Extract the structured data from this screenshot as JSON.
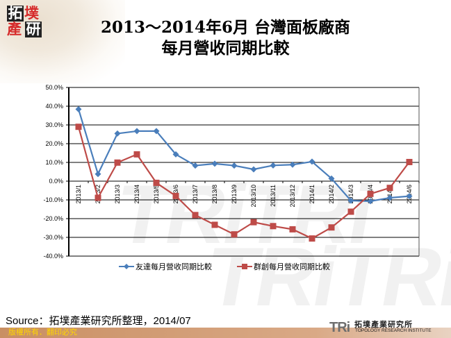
{
  "header": {
    "logo_chars": [
      "拓",
      "墣",
      "產",
      "研"
    ],
    "title_line1": "2013～2014年6月 台灣面板廠商",
    "title_line2": "每月營收同期比較"
  },
  "colors": {
    "series1": "#4a7ebb",
    "series2": "#be4b48",
    "footer_bar": "#c98f63",
    "footer_text": "#ffd700",
    "logo_red": "#d62b2b"
  },
  "chart_data": {
    "type": "line",
    "title": "2013～2014年6月 台灣面板廠商 每月營收同期比較",
    "xlabel": "",
    "ylabel": "",
    "ylim": [
      -40,
      50
    ],
    "yticks": [
      "50.0%",
      "40.0%",
      "30.0%",
      "20.0%",
      "10.0%",
      "0.0%",
      "-10.0%",
      "-20.0%",
      "-30.0%",
      "-40.0%"
    ],
    "grid": true,
    "legend_position": "bottom",
    "categories": [
      "2013/1",
      "2013/2",
      "2013/3",
      "2013/4",
      "2013/5",
      "2013/6",
      "2013/7",
      "2013/8",
      "2013/9",
      "2013/10",
      "2013/11",
      "2013/12",
      "2014/1",
      "2014/2",
      "2014/3",
      "2014/4",
      "2014/5",
      "2014/6"
    ],
    "series": [
      {
        "name": "友達每月營收同期比較",
        "color": "#4a7ebb",
        "marker": "diamond",
        "values": [
          38.4,
          3.8,
          25.4,
          26.7,
          26.7,
          14.3,
          8.3,
          9.3,
          8.3,
          6.3,
          8.4,
          8.8,
          10.4,
          1.4,
          -10.4,
          -10.7,
          -8.9,
          -8.0
        ]
      },
      {
        "name": "群創每月營收同期比較",
        "color": "#be4b48",
        "marker": "square",
        "values": [
          29.0,
          -8.9,
          9.9,
          14.3,
          -0.9,
          -7.9,
          -18.1,
          -23.3,
          -28.4,
          -21.9,
          -24.0,
          -25.7,
          -30.6,
          -24.7,
          -16.3,
          -6.8,
          -3.6,
          10.2
        ]
      }
    ]
  },
  "legend": {
    "series1": "友達每月營收同期比較",
    "series2": "群創每月營收同期比較"
  },
  "footer": {
    "source": "Source：拓墣產業研究所整理，2014/07",
    "copyright": "版權所有．翻印必究",
    "org_mark": "TRi",
    "org_name_cn": "拓墣產業研究所",
    "org_name_en": "TOPOLOGY RESEARCH INSTITUTE"
  }
}
